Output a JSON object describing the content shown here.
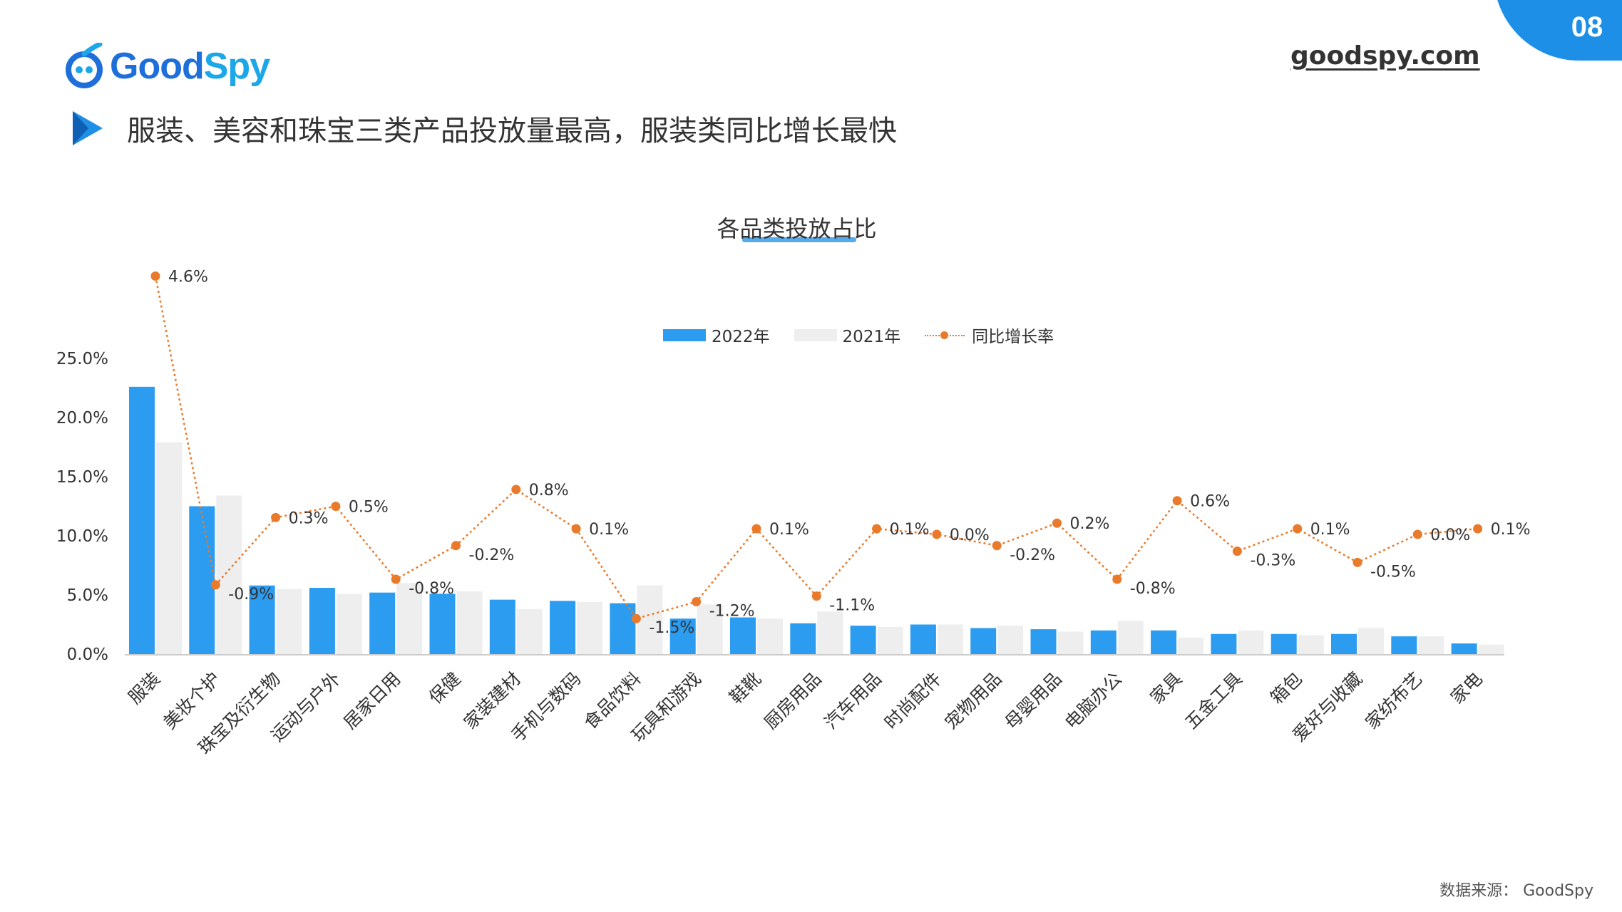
{
  "brand": {
    "name_part1": "Good",
    "name_part2": "Spy",
    "url": "goodspy.com"
  },
  "page": {
    "number": "08"
  },
  "headline": "服装、美容和珠宝三类产品投放量最高，服装类同比增长最快",
  "source": "数据来源：  GoodSpy",
  "colors": {
    "bar_2022": "#2c9cf0",
    "bar_2021": "#eeeeee",
    "growth": "#e97a2b",
    "accent": "#1e8fe6"
  },
  "chart_data": {
    "type": "bar",
    "title": "各品类投放占比",
    "legend": [
      "2022年",
      "2021年",
      "同比增长率"
    ],
    "legend_position": "top",
    "categories": [
      "服装",
      "美妆个护",
      "珠宝及衍生物",
      "运动与户外",
      "居家日用",
      "保健",
      "家装建材",
      "手机与数码",
      "食品饮料",
      "玩具和游戏",
      "鞋靴",
      "厨房用品",
      "汽车用品",
      "时尚配件",
      "宠物用品",
      "母婴用品",
      "电脑办公",
      "家具",
      "五金工具",
      "箱包",
      "爱好与收藏",
      "家纺布艺",
      "家电"
    ],
    "series": [
      {
        "name": "2022年",
        "values": [
          22.6,
          12.5,
          5.8,
          5.6,
          5.2,
          5.1,
          4.6,
          4.5,
          4.3,
          3.0,
          3.1,
          2.6,
          2.4,
          2.5,
          2.2,
          2.1,
          2.0,
          2.0,
          1.7,
          1.7,
          1.7,
          1.5,
          0.9
        ]
      },
      {
        "name": "2021年",
        "values": [
          17.9,
          13.4,
          5.5,
          5.1,
          6.0,
          5.3,
          3.8,
          4.4,
          5.8,
          4.2,
          3.0,
          3.6,
          2.3,
          2.5,
          2.4,
          1.9,
          2.8,
          1.4,
          2.0,
          1.6,
          2.2,
          1.5,
          0.8
        ]
      }
    ],
    "growth_series": {
      "name": "同比增长率",
      "values": [
        4.6,
        -0.9,
        0.3,
        0.5,
        -0.8,
        -0.2,
        0.8,
        0.1,
        -1.5,
        -1.2,
        0.1,
        -1.1,
        0.1,
        0.0,
        -0.2,
        0.2,
        -0.8,
        0.6,
        -0.3,
        0.1,
        -0.5,
        0.0,
        0.1
      ],
      "labels": [
        "4.6%",
        "-0.9%",
        "0.3%",
        "0.5%",
        "-0.8%",
        "-0.2%",
        "0.8%",
        "0.1%",
        "-1.5%",
        "-1.2%",
        "0.1%",
        "-1.1%",
        "0.1%",
        "0.0%",
        "-0.2%",
        "0.2%",
        "-0.8%",
        "0.6%",
        "-0.3%",
        "0.1%",
        "-0.5%",
        "0.0%",
        "0.1%"
      ]
    },
    "ylim": [
      0,
      25
    ],
    "yticks": [
      "0.0%",
      "5.0%",
      "10.0%",
      "15.0%",
      "20.0%",
      "25.0%"
    ],
    "grid": false
  }
}
